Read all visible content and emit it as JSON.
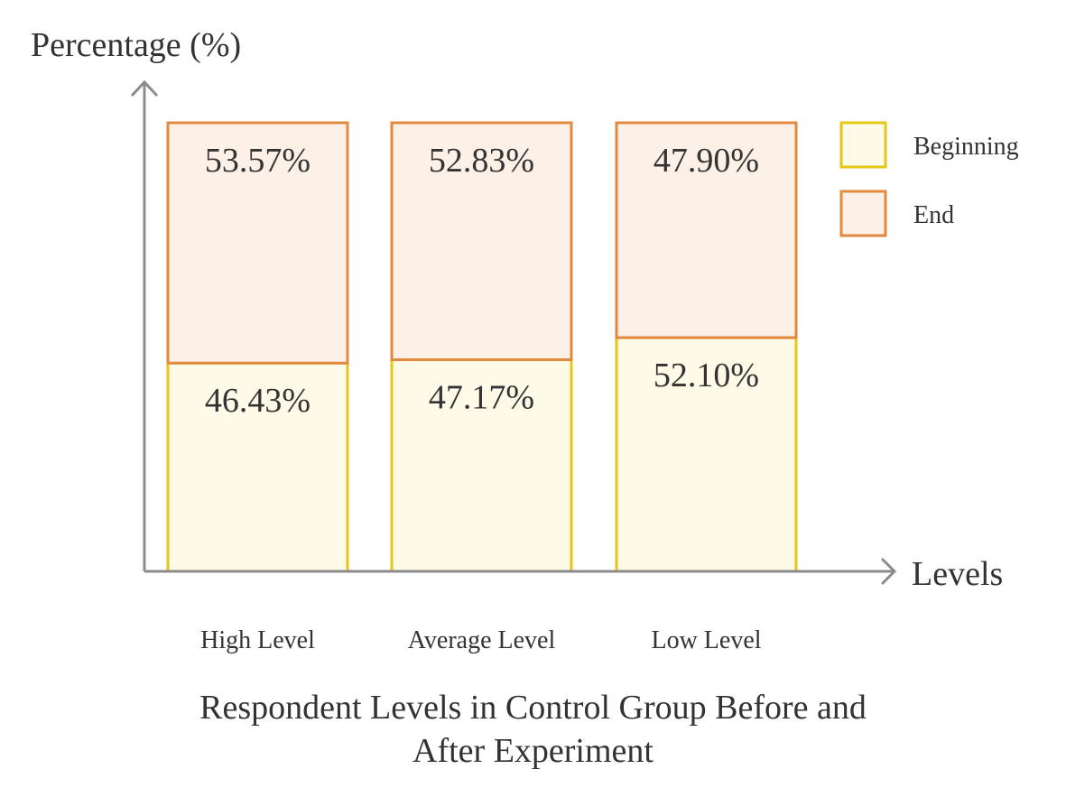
{
  "chart_data": {
    "type": "bar",
    "stacked": true,
    "title_lines": [
      "Respondent Levels in Control Group Before and",
      "After Experiment"
    ],
    "xlabel": "Levels",
    "ylabel": "Percentage (%)",
    "categories": [
      "High Level",
      "Average Level",
      "Low Level"
    ],
    "ylim": [
      0,
      100
    ],
    "grid": false,
    "legend_position": "top-right",
    "series": [
      {
        "name": "Beginning",
        "values": [
          46.43,
          47.17,
          52.1
        ],
        "labels": [
          "46.43%",
          "47.17%",
          "52.10%"
        ],
        "fill": "#fefae8",
        "stroke": "#e6c619"
      },
      {
        "name": "End",
        "values": [
          53.57,
          52.83,
          47.9
        ],
        "labels": [
          "53.57%",
          "52.83%",
          "47.90%"
        ],
        "fill": "#fdf0e6",
        "stroke": "#df8a3e"
      }
    ],
    "axis_color": "#8c8c8c"
  }
}
